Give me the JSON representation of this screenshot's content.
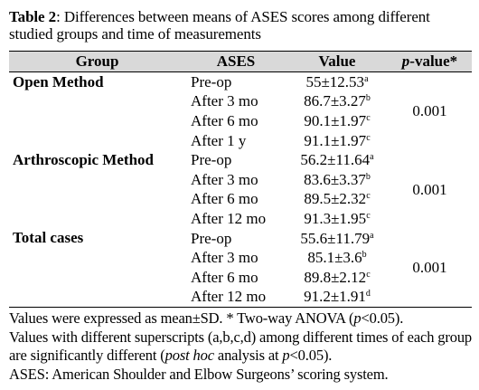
{
  "caption": {
    "label": "Table 2",
    "text": ": Differences between means of ASES scores among different studied groups and time of measurements"
  },
  "headers": {
    "group": "Group",
    "ases": "ASES",
    "value": "Value",
    "p_italic": "p",
    "p_rest": "-value*"
  },
  "groups": [
    {
      "name": "Open Method",
      "p_value": "0.001",
      "rows": [
        {
          "ases": "Pre-op",
          "value": "55±12.53",
          "sup": "a"
        },
        {
          "ases": "After 3 mo",
          "value": "86.7±3.27",
          "sup": "b"
        },
        {
          "ases": "After 6 mo",
          "value": "90.1±1.97",
          "sup": "c"
        },
        {
          "ases": "After 1 y",
          "value": "91.1±1.97",
          "sup": "c"
        }
      ]
    },
    {
      "name": "Arthroscopic Method",
      "p_value": "0.001",
      "rows": [
        {
          "ases": "Pre-op",
          "value": "56.2±11.64",
          "sup": "a"
        },
        {
          "ases": "After 3 mo",
          "value": "83.6±3.37",
          "sup": "b"
        },
        {
          "ases": "After 6 mo",
          "value": "89.5±2.32",
          "sup": "c"
        },
        {
          "ases": "After 12 mo",
          "value": "91.3±1.95",
          "sup": "c"
        }
      ]
    },
    {
      "name": "Total cases",
      "p_value": "0.001",
      "rows": [
        {
          "ases": "Pre-op",
          "value": "55.6±11.79",
          "sup": "a"
        },
        {
          "ases": "After 3 mo",
          "value": "85.1±3.6",
          "sup": "b"
        },
        {
          "ases": "After 6 mo",
          "value": "89.8±2.12",
          "sup": "c"
        },
        {
          "ases": "After 12 mo",
          "value": "91.2±1.91",
          "sup": "d"
        }
      ]
    }
  ],
  "notes": {
    "n1a": "Values were expressed as mean±SD. * Two-way ANOVA (",
    "n1b": "p",
    "n1c": "<0.05).",
    "n2a": "Values with different superscripts (a,b,c,d) among different times of each group are significantly different (",
    "n2b": "post hoc",
    "n2c": " analysis at ",
    "n2d": "p",
    "n2e": "<0.05).",
    "n3": "ASES: American Shoulder and Elbow Surgeons’ scoring system."
  }
}
